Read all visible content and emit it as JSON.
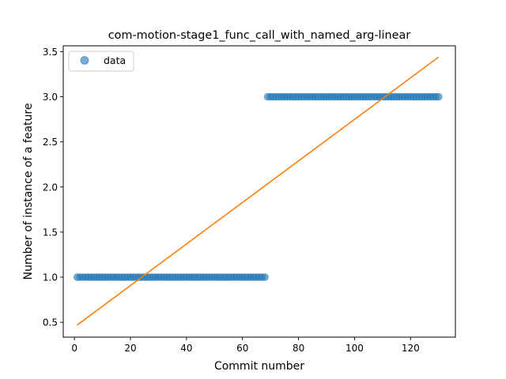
{
  "chart_data": {
    "type": "scatter",
    "title": "com-motion-stage1_func_call_with_named_arg-linear",
    "xlabel": "Commit number",
    "ylabel": "Number of instance of a feature",
    "xlim": [
      -4,
      136
    ],
    "ylim": [
      0.335,
      3.565
    ],
    "xticks": [
      "0",
      "20",
      "40",
      "60",
      "80",
      "100",
      "120"
    ],
    "yticks": [
      "0.5",
      "1.0",
      "1.5",
      "2.0",
      "2.5",
      "3.0",
      "3.5"
    ],
    "grid": false,
    "legend": {
      "placement": "top-left",
      "entries": [
        "data"
      ]
    },
    "series": [
      {
        "name": "data",
        "kind": "scatter",
        "color": "#1f77b4",
        "segments": [
          {
            "x_from": 1,
            "x_to": 68,
            "y": 1.0
          },
          {
            "x_from": 69,
            "x_to": 130,
            "y": 3.0
          }
        ]
      },
      {
        "kind": "line",
        "color": "#ff7f0e",
        "points": [
          {
            "x": 1,
            "y": 0.47
          },
          {
            "x": 130,
            "y": 3.44
          }
        ]
      }
    ]
  }
}
